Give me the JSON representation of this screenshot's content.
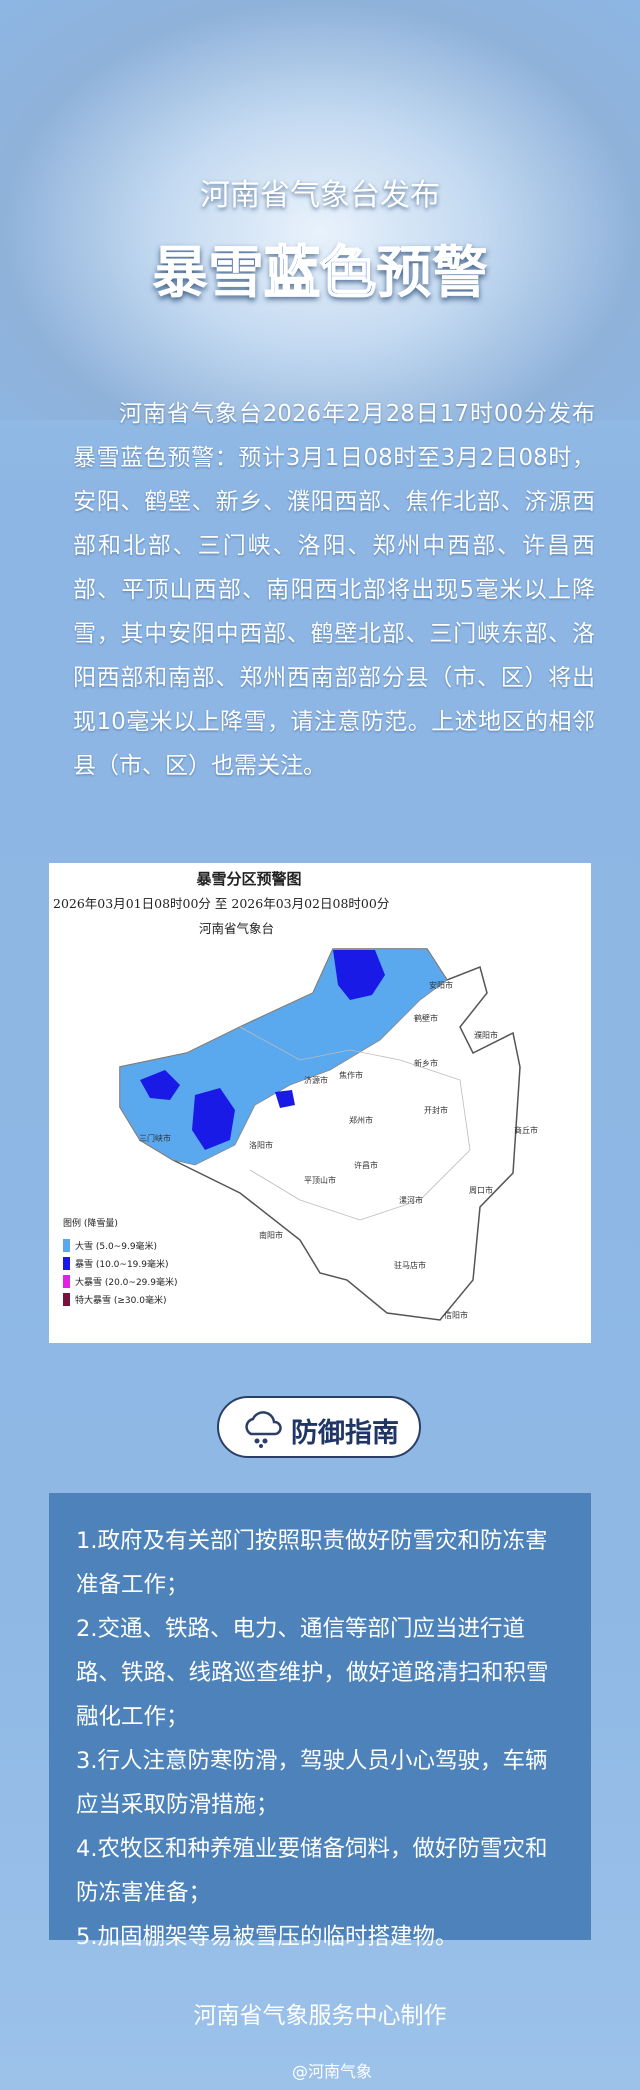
{
  "header": {
    "issuer": "河南省气象台发布",
    "title_prefix": "暴雪",
    "title_highlight": "蓝色",
    "title_suffix": "预警"
  },
  "body": {
    "paragraph": "河南省气象台2026年2月28日17时00分发布暴雪蓝色预警：预计3月1日08时至3月2日08时，安阳、鹤壁、新乡、濮阳西部、焦作北部、济源西部和北部、三门峡、洛阳、郑州中西部、许昌西部、平顶山西部、南阳西北部将出现5毫米以上降雪，其中安阳中西部、鹤壁北部、三门峡东部、洛阳西部和南部、郑州西南部部分县（市、区）将出现10毫米以上降雪，请注意防范。上述地区的相邻县（市、区）也需关注。"
  },
  "map": {
    "title": "暴雪分区预警图",
    "period": "2026年03月01日08时00分 至 2026年03月02日08时00分",
    "issuer": "河南省气象台",
    "legend_title": "图例 (降雪量)",
    "legend": [
      {
        "label": "大雪 (5.0~9.9毫米)",
        "color": "#5aa9ef"
      },
      {
        "label": "暴雪 (10.0~19.9毫米)",
        "color": "#1a1ae6"
      },
      {
        "label": "大暴雪 (20.0~29.9毫米)",
        "color": "#e61ee6"
      },
      {
        "label": "特大暴雪 (≥30.0毫米)",
        "color": "#7a1040"
      }
    ],
    "cities": [
      "安阳市",
      "鹤壁市",
      "濮阳市",
      "新乡市",
      "焦作市",
      "济源市",
      "三门峡市",
      "洛阳市",
      "郑州市",
      "开封市",
      "商丘市",
      "许昌市",
      "平顶山市",
      "漯河市",
      "周口市",
      "南阳市",
      "驻马店市",
      "信阳市"
    ]
  },
  "guide": {
    "button": "防御指南",
    "items": [
      "1.政府及有关部门按照职责做好防雪灾和防冻害准备工作；",
      "2.交通、铁路、电力、通信等部门应当进行道路、铁路、线路巡查维护，做好道路清扫和积雪融化工作；",
      "3.行人注意防寒防滑，驾驶人员小心驾驶，车辆应当采取防滑措施；",
      "4.农牧区和种养殖业要储备饲料，做好防雪灾和防冻害准备；",
      "5.加固棚架等易被雪压的临时搭建物。"
    ]
  },
  "footer": {
    "producer": "河南省气象服务中心制作",
    "account": "@河南气象"
  }
}
